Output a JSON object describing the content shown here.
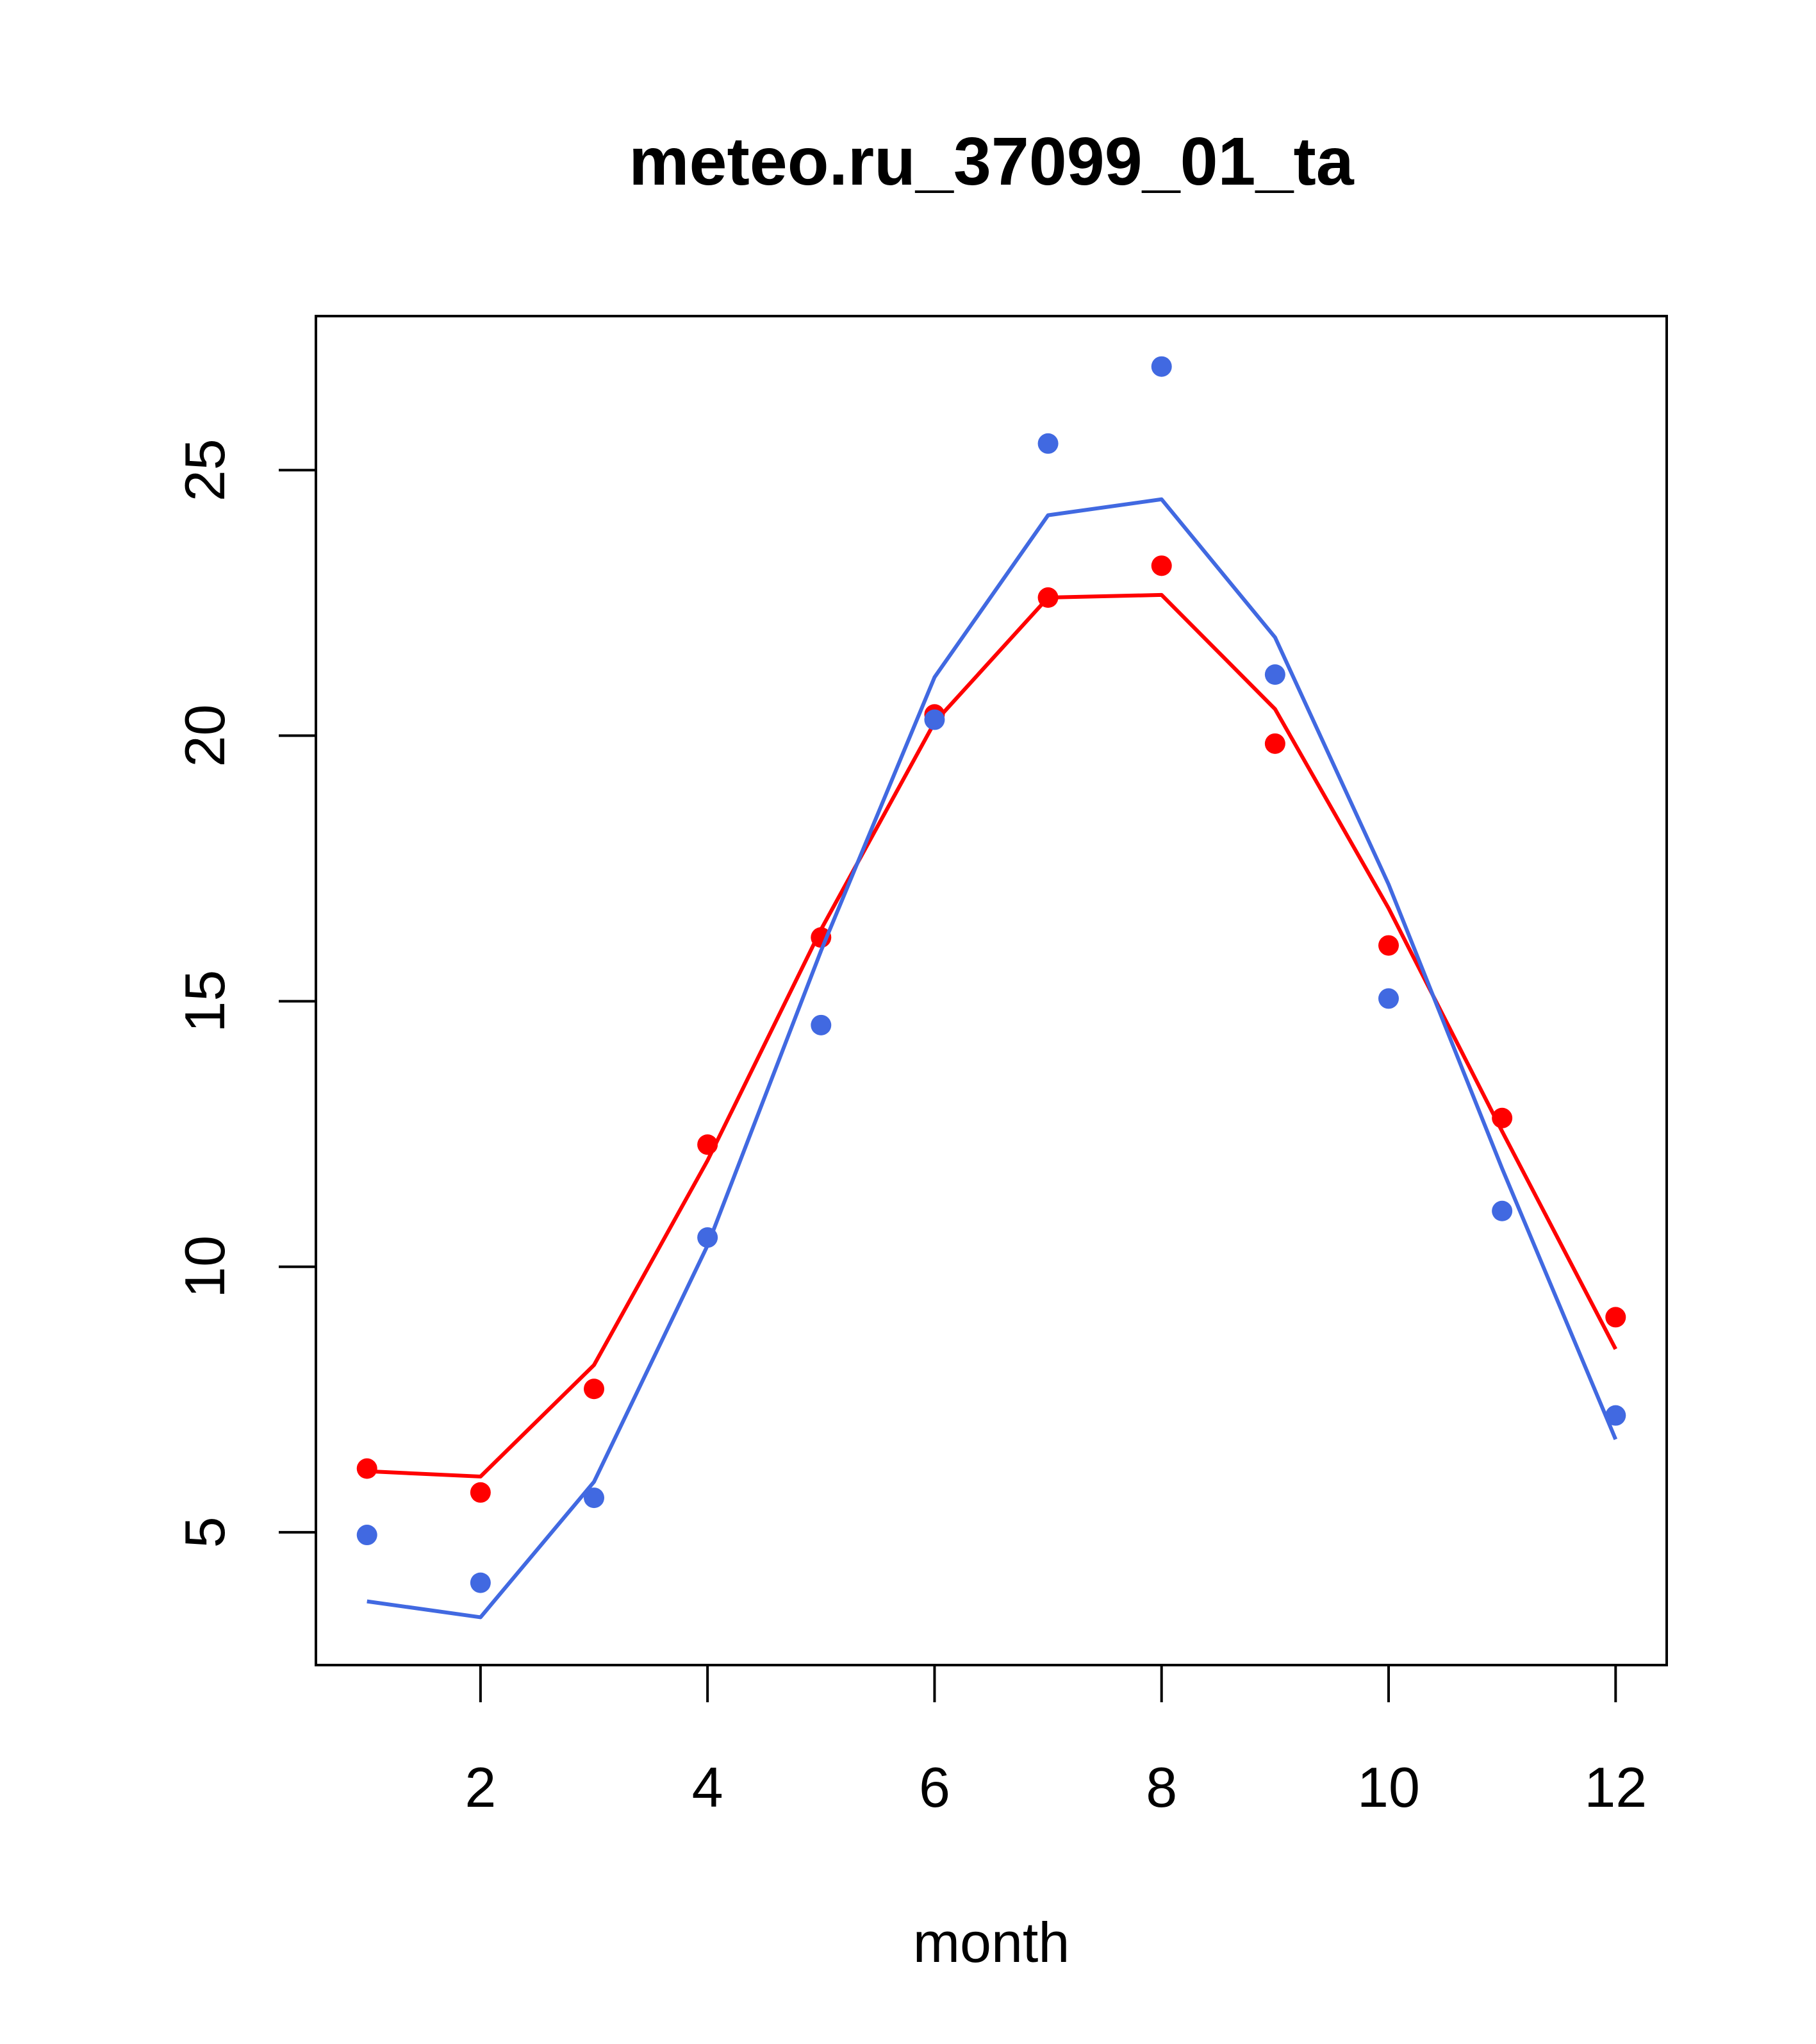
{
  "chart_data": {
    "type": "line",
    "title": "meteo.ru_37099_01_ta",
    "xlabel": "month",
    "ylabel": "",
    "xlim": [
      0.55,
      12.45
    ],
    "ylim": [
      2.5,
      27.9
    ],
    "x_ticks": [
      2,
      4,
      6,
      8,
      10,
      12
    ],
    "y_ticks": [
      5,
      10,
      15,
      20,
      25
    ],
    "grid": false,
    "legend": "none",
    "x": [
      1,
      2,
      3,
      4,
      5,
      6,
      7,
      8,
      9,
      10,
      11,
      12
    ],
    "series": [
      {
        "color": "#FF0000",
        "points": [
          6.2,
          5.75,
          7.7,
          12.3,
          16.2,
          20.4,
          22.6,
          23.2,
          19.85,
          16.05,
          12.8,
          9.05
        ],
        "line": [
          6.15,
          6.05,
          8.15,
          12.0,
          16.35,
          20.25,
          22.6,
          22.65,
          20.5,
          16.75,
          12.55,
          8.45
        ]
      },
      {
        "color": "#4169E1",
        "points": [
          4.95,
          4.05,
          5.65,
          10.55,
          14.55,
          20.3,
          25.5,
          26.95,
          21.15,
          15.05,
          11.05,
          7.2
        ],
        "line": [
          3.7,
          3.4,
          5.95,
          10.4,
          15.95,
          21.1,
          24.15,
          24.45,
          21.85,
          17.2,
          11.85,
          6.75
        ]
      }
    ]
  }
}
